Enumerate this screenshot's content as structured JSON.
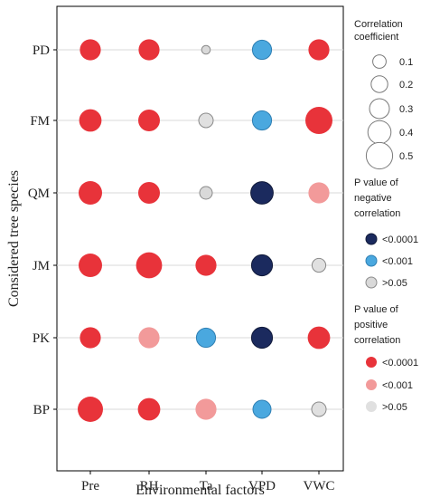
{
  "chart_data": {
    "type": "scatter",
    "xlabel": "Environmental factors",
    "ylabel": "Considered tree species",
    "categories_x": [
      "Pre",
      "RH",
      "Ta",
      "VPD",
      "VWC"
    ],
    "categories_y": [
      "PD",
      "FM",
      "QM",
      "JM",
      "PK",
      "BP"
    ],
    "grid": "horizontal",
    "colors": {
      "neg_lt_0.0001": "#1b2a5e",
      "neg_lt_0.001": "#4aa8df",
      "neg_gt_0.05": "#d9d9d9",
      "pos_lt_0.0001": "#e8333a",
      "pos_lt_0.001": "#f29a9a",
      "pos_gt_0.05": "#e0e0e0"
    },
    "points": [
      {
        "species": "PD",
        "factor": "Pre",
        "r": 0.38,
        "class": "pos_lt_0.0001"
      },
      {
        "species": "PD",
        "factor": "RH",
        "r": 0.38,
        "class": "pos_lt_0.0001"
      },
      {
        "species": "PD",
        "factor": "Ta",
        "r": 0.04,
        "class": "neg_gt_0.05"
      },
      {
        "species": "PD",
        "factor": "VPD",
        "r": 0.33,
        "class": "neg_lt_0.001"
      },
      {
        "species": "PD",
        "factor": "VWC",
        "r": 0.38,
        "class": "pos_lt_0.0001"
      },
      {
        "species": "FM",
        "factor": "Pre",
        "r": 0.42,
        "class": "pos_lt_0.0001"
      },
      {
        "species": "FM",
        "factor": "RH",
        "r": 0.4,
        "class": "pos_lt_0.0001"
      },
      {
        "species": "FM",
        "factor": "Ta",
        "r": 0.2,
        "class": "pos_gt_0.05"
      },
      {
        "species": "FM",
        "factor": "VPD",
        "r": 0.33,
        "class": "neg_lt_0.001"
      },
      {
        "species": "FM",
        "factor": "VWC",
        "r": 0.55,
        "class": "pos_lt_0.0001"
      },
      {
        "species": "QM",
        "factor": "Pre",
        "r": 0.45,
        "class": "pos_lt_0.0001"
      },
      {
        "species": "QM",
        "factor": "RH",
        "r": 0.4,
        "class": "pos_lt_0.0001"
      },
      {
        "species": "QM",
        "factor": "Ta",
        "r": 0.15,
        "class": "neg_gt_0.05"
      },
      {
        "species": "QM",
        "factor": "VPD",
        "r": 0.42,
        "class": "neg_lt_0.0001"
      },
      {
        "species": "QM",
        "factor": "VWC",
        "r": 0.38,
        "class": "pos_lt_0.001"
      },
      {
        "species": "JM",
        "factor": "Pre",
        "r": 0.45,
        "class": "pos_lt_0.0001"
      },
      {
        "species": "JM",
        "factor": "RH",
        "r": 0.52,
        "class": "pos_lt_0.0001"
      },
      {
        "species": "JM",
        "factor": "Ta",
        "r": 0.38,
        "class": "pos_lt_0.0001"
      },
      {
        "species": "JM",
        "factor": "VPD",
        "r": 0.38,
        "class": "neg_lt_0.0001"
      },
      {
        "species": "JM",
        "factor": "VWC",
        "r": 0.18,
        "class": "pos_gt_0.05"
      },
      {
        "species": "PK",
        "factor": "Pre",
        "r": 0.38,
        "class": "pos_lt_0.0001"
      },
      {
        "species": "PK",
        "factor": "RH",
        "r": 0.38,
        "class": "pos_lt_0.001"
      },
      {
        "species": "PK",
        "factor": "Ta",
        "r": 0.33,
        "class": "neg_lt_0.001"
      },
      {
        "species": "PK",
        "factor": "VPD",
        "r": 0.38,
        "class": "neg_lt_0.0001"
      },
      {
        "species": "PK",
        "factor": "VWC",
        "r": 0.42,
        "class": "pos_lt_0.0001"
      },
      {
        "species": "BP",
        "factor": "Pre",
        "r": 0.5,
        "class": "pos_lt_0.0001"
      },
      {
        "species": "BP",
        "factor": "RH",
        "r": 0.42,
        "class": "pos_lt_0.0001"
      },
      {
        "species": "BP",
        "factor": "Ta",
        "r": 0.38,
        "class": "pos_lt_0.001"
      },
      {
        "species": "BP",
        "factor": "VPD",
        "r": 0.3,
        "class": "neg_lt_0.001"
      },
      {
        "species": "BP",
        "factor": "VWC",
        "r": 0.2,
        "class": "pos_gt_0.05"
      }
    ]
  },
  "legend": {
    "size_title": [
      "Correlation",
      "coefficient"
    ],
    "sizes": [
      {
        "value": 0.1,
        "label": "0.1"
      },
      {
        "value": 0.2,
        "label": "0.2"
      },
      {
        "value": 0.3,
        "label": "0.3"
      },
      {
        "value": 0.4,
        "label": "0.4"
      },
      {
        "value": 0.5,
        "label": "0.5"
      }
    ],
    "neg_title": [
      "P value of",
      "negative",
      "correlation"
    ],
    "neg_items": [
      {
        "label": "<0.0001",
        "class": "neg_lt_0.0001"
      },
      {
        "label": "<0.001",
        "class": "neg_lt_0.001"
      },
      {
        "label": ">0.05",
        "class": "neg_gt_0.05"
      }
    ],
    "pos_title": [
      "P value of",
      "positive",
      "correlation"
    ],
    "pos_items": [
      {
        "label": "<0.0001",
        "class": "pos_lt_0.0001"
      },
      {
        "label": "<0.001",
        "class": "pos_lt_0.001"
      },
      {
        "label": ">0.05",
        "class": "pos_gt_0.05"
      }
    ]
  }
}
